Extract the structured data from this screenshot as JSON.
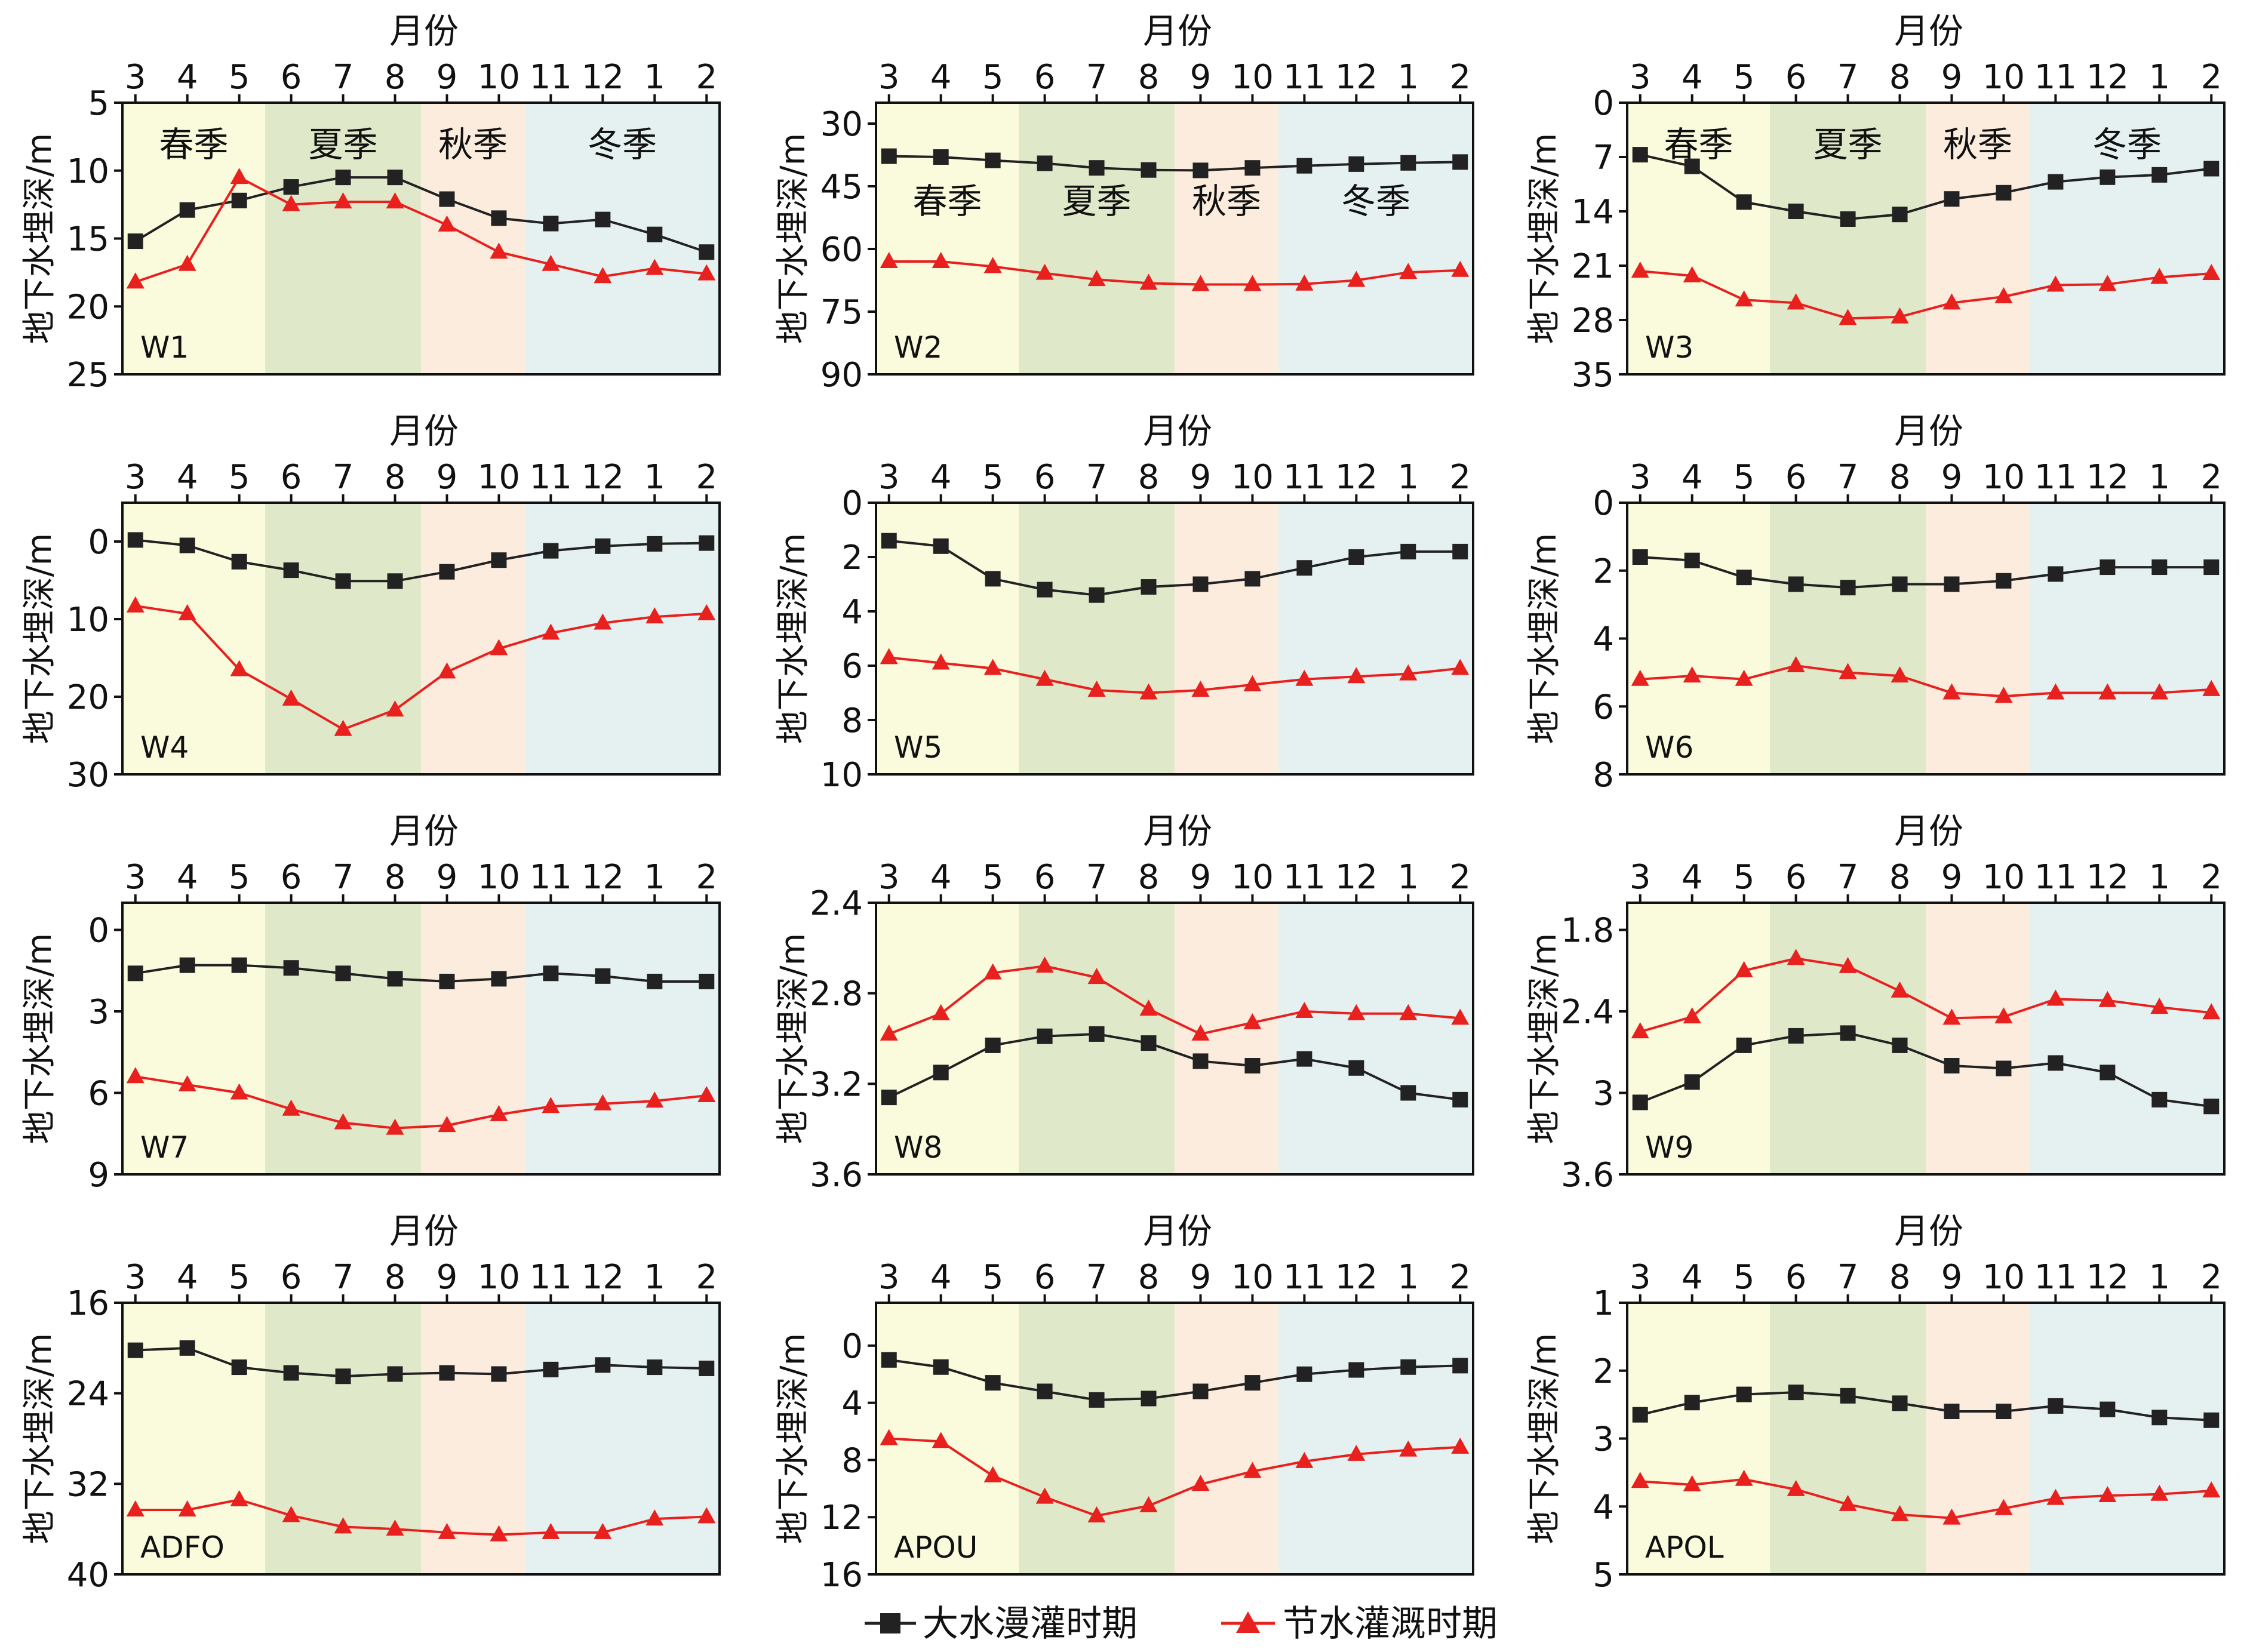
{
  "figure": {
    "x_axis_title": "月份",
    "y_axis_title": "地下水埋深/m",
    "months": [
      "3",
      "4",
      "5",
      "6",
      "7",
      "8",
      "9",
      "10",
      "11",
      "12",
      "1",
      "2"
    ],
    "seasons": [
      {
        "label": "春季",
        "from": "3",
        "to": "5",
        "color": "#fafadc"
      },
      {
        "label": "夏季",
        "from": "6",
        "to": "8",
        "color": "#dfe8c9"
      },
      {
        "label": "秋季",
        "from": "9",
        "to": "10",
        "color": "#fcecde"
      },
      {
        "label": "冬季",
        "from": "11",
        "to": "2",
        "color": "#e4f1f0"
      }
    ],
    "legend": [
      {
        "name": "大水漫灌时期",
        "color": "#222222",
        "marker": "square"
      },
      {
        "name": "节水灌溉时期",
        "color": "#e8201e",
        "marker": "triangle"
      }
    ]
  },
  "chart_data": [
    {
      "type": "line",
      "well": "W1",
      "x": [
        "3",
        "4",
        "5",
        "6",
        "7",
        "8",
        "9",
        "10",
        "11",
        "12",
        "1",
        "2"
      ],
      "ylim": [
        5,
        25
      ],
      "y_inverted": true,
      "yticks": [
        5,
        10,
        15,
        20,
        25
      ],
      "season_labels_row": "top",
      "series": [
        {
          "name": "大水漫灌时期",
          "values": [
            15.2,
            12.9,
            12.2,
            11.2,
            10.5,
            10.5,
            12.1,
            13.5,
            13.9,
            13.6,
            14.7,
            16.0
          ]
        },
        {
          "name": "节水灌溉时期",
          "values": [
            18.2,
            16.9,
            10.5,
            12.5,
            12.3,
            12.3,
            14.0,
            16.0,
            16.9,
            17.8,
            17.2,
            17.6
          ]
        }
      ]
    },
    {
      "type": "line",
      "well": "W2",
      "x": [
        "3",
        "4",
        "5",
        "6",
        "7",
        "8",
        "9",
        "10",
        "11",
        "12",
        "1",
        "2"
      ],
      "ylim": [
        25,
        90
      ],
      "y_inverted": true,
      "yticks": [
        30,
        45,
        60,
        75,
        90
      ],
      "season_labels_row": "lower",
      "series": [
        {
          "name": "大水漫灌时期",
          "values": [
            37.8,
            38.0,
            38.8,
            39.5,
            40.6,
            41.1,
            41.2,
            40.6,
            40.1,
            39.7,
            39.4,
            39.2
          ]
        },
        {
          "name": "节水灌溉时期",
          "values": [
            63.0,
            63.0,
            64.2,
            65.8,
            67.3,
            68.2,
            68.5,
            68.5,
            68.4,
            67.5,
            65.6,
            65.1
          ]
        }
      ]
    },
    {
      "type": "line",
      "well": "W3",
      "x": [
        "3",
        "4",
        "5",
        "6",
        "7",
        "8",
        "9",
        "10",
        "11",
        "12",
        "1",
        "2"
      ],
      "ylim": [
        0,
        35
      ],
      "y_inverted": true,
      "yticks": [
        0,
        7,
        14,
        21,
        28,
        35
      ],
      "season_labels_row": "top",
      "series": [
        {
          "name": "大水漫灌时期",
          "values": [
            6.7,
            8.2,
            12.8,
            14.0,
            15.0,
            14.4,
            12.4,
            11.6,
            10.2,
            9.6,
            9.3,
            8.5
          ]
        },
        {
          "name": "节水灌溉时期",
          "values": [
            21.7,
            22.3,
            25.4,
            25.8,
            27.8,
            27.6,
            25.8,
            25.0,
            23.5,
            23.4,
            22.5,
            22.0
          ]
        }
      ]
    },
    {
      "type": "line",
      "well": "W4",
      "x": [
        "3",
        "4",
        "5",
        "6",
        "7",
        "8",
        "9",
        "10",
        "11",
        "12",
        "1",
        "2"
      ],
      "ylim": [
        -5,
        30
      ],
      "y_inverted": true,
      "yticks": [
        0,
        10,
        20,
        30
      ],
      "season_labels_row": "none",
      "series": [
        {
          "name": "大水漫灌时期",
          "values": [
            -0.2,
            0.5,
            2.6,
            3.7,
            5.1,
            5.1,
            3.9,
            2.4,
            1.2,
            0.6,
            0.3,
            0.2
          ]
        },
        {
          "name": "节水灌溉时期",
          "values": [
            8.3,
            9.3,
            16.5,
            20.3,
            24.2,
            21.7,
            16.8,
            13.8,
            11.8,
            10.5,
            9.7,
            9.3
          ]
        }
      ]
    },
    {
      "type": "line",
      "well": "W5",
      "x": [
        "3",
        "4",
        "5",
        "6",
        "7",
        "8",
        "9",
        "10",
        "11",
        "12",
        "1",
        "2"
      ],
      "ylim": [
        0,
        10
      ],
      "y_inverted": true,
      "yticks": [
        0,
        2,
        4,
        6,
        8,
        10
      ],
      "season_labels_row": "none",
      "series": [
        {
          "name": "大水漫灌时期",
          "values": [
            1.4,
            1.6,
            2.8,
            3.2,
            3.4,
            3.1,
            3.0,
            2.8,
            2.4,
            2.0,
            1.8,
            1.8
          ]
        },
        {
          "name": "节水灌溉时期",
          "values": [
            5.7,
            5.9,
            6.1,
            6.5,
            6.9,
            7.0,
            6.9,
            6.7,
            6.5,
            6.4,
            6.3,
            6.1
          ]
        }
      ]
    },
    {
      "type": "line",
      "well": "W6",
      "x": [
        "3",
        "4",
        "5",
        "6",
        "7",
        "8",
        "9",
        "10",
        "11",
        "12",
        "1",
        "2"
      ],
      "ylim": [
        0,
        8
      ],
      "y_inverted": true,
      "yticks": [
        0,
        2,
        4,
        6,
        8
      ],
      "season_labels_row": "none",
      "series": [
        {
          "name": "大水漫灌时期",
          "values": [
            1.6,
            1.7,
            2.2,
            2.4,
            2.5,
            2.4,
            2.4,
            2.3,
            2.1,
            1.9,
            1.9,
            1.9
          ]
        },
        {
          "name": "节水灌溉时期",
          "values": [
            5.2,
            5.1,
            5.2,
            4.8,
            5.0,
            5.1,
            5.6,
            5.7,
            5.6,
            5.6,
            5.6,
            5.5
          ]
        }
      ]
    },
    {
      "type": "line",
      "well": "W7",
      "x": [
        "3",
        "4",
        "5",
        "6",
        "7",
        "8",
        "9",
        "10",
        "11",
        "12",
        "1",
        "2"
      ],
      "ylim": [
        -1,
        9
      ],
      "y_inverted": true,
      "yticks": [
        0,
        3,
        6,
        9
      ],
      "season_labels_row": "none",
      "series": [
        {
          "name": "大水漫灌时期",
          "values": [
            1.6,
            1.3,
            1.3,
            1.4,
            1.6,
            1.8,
            1.9,
            1.8,
            1.6,
            1.7,
            1.9,
            1.9
          ]
        },
        {
          "name": "节水灌溉时期",
          "values": [
            5.4,
            5.7,
            6.0,
            6.6,
            7.1,
            7.3,
            7.2,
            6.8,
            6.5,
            6.4,
            6.3,
            6.1
          ]
        }
      ]
    },
    {
      "type": "line",
      "well": "W8",
      "x": [
        "3",
        "4",
        "5",
        "6",
        "7",
        "8",
        "9",
        "10",
        "11",
        "12",
        "1",
        "2"
      ],
      "ylim": [
        2.4,
        3.6
      ],
      "y_inverted": true,
      "yticks": [
        2.4,
        2.8,
        3.2,
        3.6
      ],
      "season_labels_row": "none",
      "series": [
        {
          "name": "大水漫灌时期",
          "values": [
            3.26,
            3.15,
            3.03,
            2.99,
            2.98,
            3.02,
            3.1,
            3.12,
            3.09,
            3.13,
            3.24,
            3.27
          ]
        },
        {
          "name": "节水灌溉时期",
          "values": [
            2.98,
            2.89,
            2.71,
            2.68,
            2.73,
            2.87,
            2.98,
            2.93,
            2.88,
            2.89,
            2.89,
            2.91
          ]
        }
      ]
    },
    {
      "type": "line",
      "well": "W9",
      "x": [
        "3",
        "4",
        "5",
        "6",
        "7",
        "8",
        "9",
        "10",
        "11",
        "12",
        "1",
        "2"
      ],
      "ylim": [
        1.6,
        3.6
      ],
      "y_inverted": true,
      "yticks": [
        1.8,
        2.4,
        3.0,
        3.6
      ],
      "season_labels_row": "none",
      "series": [
        {
          "name": "大水漫灌时期",
          "values": [
            3.07,
            2.92,
            2.65,
            2.58,
            2.56,
            2.65,
            2.8,
            2.82,
            2.78,
            2.85,
            3.05,
            3.1
          ]
        },
        {
          "name": "节水灌溉时期",
          "values": [
            2.55,
            2.44,
            2.1,
            2.01,
            2.07,
            2.25,
            2.45,
            2.44,
            2.31,
            2.32,
            2.37,
            2.41
          ]
        }
      ]
    },
    {
      "type": "line",
      "well": "ADFO",
      "x": [
        "3",
        "4",
        "5",
        "6",
        "7",
        "8",
        "9",
        "10",
        "11",
        "12",
        "1",
        "2"
      ],
      "ylim": [
        16,
        40
      ],
      "y_inverted": true,
      "yticks": [
        16,
        24,
        32,
        40
      ],
      "season_labels_row": "none",
      "series": [
        {
          "name": "大水漫灌时期",
          "values": [
            20.2,
            20.0,
            21.7,
            22.2,
            22.5,
            22.3,
            22.2,
            22.3,
            21.9,
            21.5,
            21.7,
            21.8
          ]
        },
        {
          "name": "节水灌溉时期",
          "values": [
            34.3,
            34.3,
            33.4,
            34.8,
            35.8,
            36.0,
            36.3,
            36.5,
            36.3,
            36.3,
            35.1,
            34.9
          ]
        }
      ]
    },
    {
      "type": "line",
      "well": "APOU",
      "x": [
        "3",
        "4",
        "5",
        "6",
        "7",
        "8",
        "9",
        "10",
        "11",
        "12",
        "1",
        "2"
      ],
      "ylim": [
        -3,
        16
      ],
      "y_inverted": true,
      "yticks": [
        0,
        4,
        8,
        12,
        16
      ],
      "season_labels_row": "none",
      "series": [
        {
          "name": "大水漫灌时期",
          "values": [
            1.0,
            1.5,
            2.6,
            3.2,
            3.8,
            3.7,
            3.2,
            2.6,
            2.0,
            1.7,
            1.5,
            1.4
          ]
        },
        {
          "name": "节水灌溉时期",
          "values": [
            6.5,
            6.7,
            9.1,
            10.6,
            11.9,
            11.2,
            9.7,
            8.8,
            8.1,
            7.6,
            7.3,
            7.1
          ]
        }
      ]
    },
    {
      "type": "line",
      "well": "APOL",
      "x": [
        "3",
        "4",
        "5",
        "6",
        "7",
        "8",
        "9",
        "10",
        "11",
        "12",
        "1",
        "2"
      ],
      "ylim": [
        1,
        5
      ],
      "y_inverted": true,
      "yticks": [
        1,
        2,
        3,
        4,
        5
      ],
      "season_labels_row": "none",
      "series": [
        {
          "name": "大水漫灌时期",
          "values": [
            2.65,
            2.47,
            2.35,
            2.32,
            2.37,
            2.48,
            2.6,
            2.6,
            2.52,
            2.57,
            2.69,
            2.73
          ]
        },
        {
          "name": "节水灌溉时期",
          "values": [
            3.63,
            3.68,
            3.6,
            3.75,
            3.97,
            4.12,
            4.17,
            4.03,
            3.88,
            3.84,
            3.82,
            3.77
          ]
        }
      ]
    }
  ]
}
